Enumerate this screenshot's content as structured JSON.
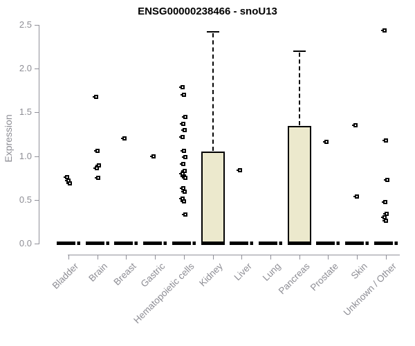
{
  "chart_data": {
    "type": "boxplot",
    "title": "ENSG00000238466 - snoU13",
    "ylabel": "Expression",
    "ylim": [
      0.0,
      2.5
    ],
    "ytick_labels": [
      "0.0",
      "0.5",
      "1.0",
      "1.5",
      "2.0",
      "2.5"
    ],
    "ytick_values": [
      0.0,
      0.5,
      1.0,
      1.5,
      2.0,
      2.5
    ],
    "grid": false,
    "legend": false,
    "categories": [
      "Bladder",
      "Brain",
      "Breast",
      "Gastric",
      "Hematopoietic cells",
      "Kidney",
      "Liver",
      "Lung",
      "Pancreas",
      "Prostate",
      "Skin",
      "Unknown / Other"
    ],
    "series": [
      {
        "name": "Bladder",
        "median": 0,
        "q1": 0,
        "q3": 0,
        "whisker_low": 0,
        "whisker_high": 0,
        "outliers": [
          0.76,
          0.72,
          0.69
        ]
      },
      {
        "name": "Brain",
        "median": 0,
        "q1": 0,
        "q3": 0,
        "whisker_low": 0,
        "whisker_high": 0,
        "outliers": [
          1.68,
          1.06,
          0.89,
          0.86,
          0.75
        ]
      },
      {
        "name": "Breast",
        "median": 0,
        "q1": 0,
        "q3": 0,
        "whisker_low": 0,
        "whisker_high": 0,
        "outliers": [
          1.2
        ]
      },
      {
        "name": "Gastric",
        "median": 0,
        "q1": 0,
        "q3": 0,
        "whisker_low": 0,
        "whisker_high": 0,
        "outliers": [
          1.0
        ]
      },
      {
        "name": "Hematopoietic cells",
        "median": 0,
        "q1": 0,
        "q3": 0,
        "whisker_low": 0,
        "whisker_high": 0,
        "outliers": [
          1.79,
          1.7,
          1.45,
          1.37,
          1.3,
          1.22,
          1.06,
          0.99,
          0.91,
          0.83,
          0.8,
          0.77,
          0.75,
          0.63,
          0.59,
          0.51,
          0.48,
          0.33
        ]
      },
      {
        "name": "Kidney",
        "median": 0,
        "q1": 0,
        "q3": 1.04,
        "whisker_low": 0,
        "whisker_high": 2.42,
        "outliers": []
      },
      {
        "name": "Liver",
        "median": 0,
        "q1": 0,
        "q3": 0,
        "whisker_low": 0,
        "whisker_high": 0,
        "outliers": [
          0.84
        ]
      },
      {
        "name": "Lung",
        "median": 0,
        "q1": 0,
        "q3": 0,
        "whisker_low": 0,
        "whisker_high": 0,
        "outliers": []
      },
      {
        "name": "Pancreas",
        "median": 0,
        "q1": 0,
        "q3": 1.34,
        "whisker_low": 0,
        "whisker_high": 2.2,
        "outliers": []
      },
      {
        "name": "Prostate",
        "median": 0,
        "q1": 0,
        "q3": 0,
        "whisker_low": 0,
        "whisker_high": 0,
        "outliers": [
          1.16
        ]
      },
      {
        "name": "Skin",
        "median": 0,
        "q1": 0,
        "q3": 0,
        "whisker_low": 0,
        "whisker_high": 0,
        "outliers": [
          1.35,
          0.54
        ]
      },
      {
        "name": "Unknown / Other",
        "median": 0,
        "q1": 0,
        "q3": 0,
        "whisker_low": 0,
        "whisker_high": 0,
        "outliers": [
          2.44,
          1.18,
          0.73,
          0.47,
          0.34,
          0.3,
          0.26
        ]
      }
    ],
    "colors": {
      "box_fill": "#ece9cd",
      "box_stroke": "#000000",
      "point_stroke": "#000000",
      "axis": "#8f8f98",
      "tick_label": "#8d8d94",
      "title": "#000000",
      "background": "#ffffff"
    }
  }
}
